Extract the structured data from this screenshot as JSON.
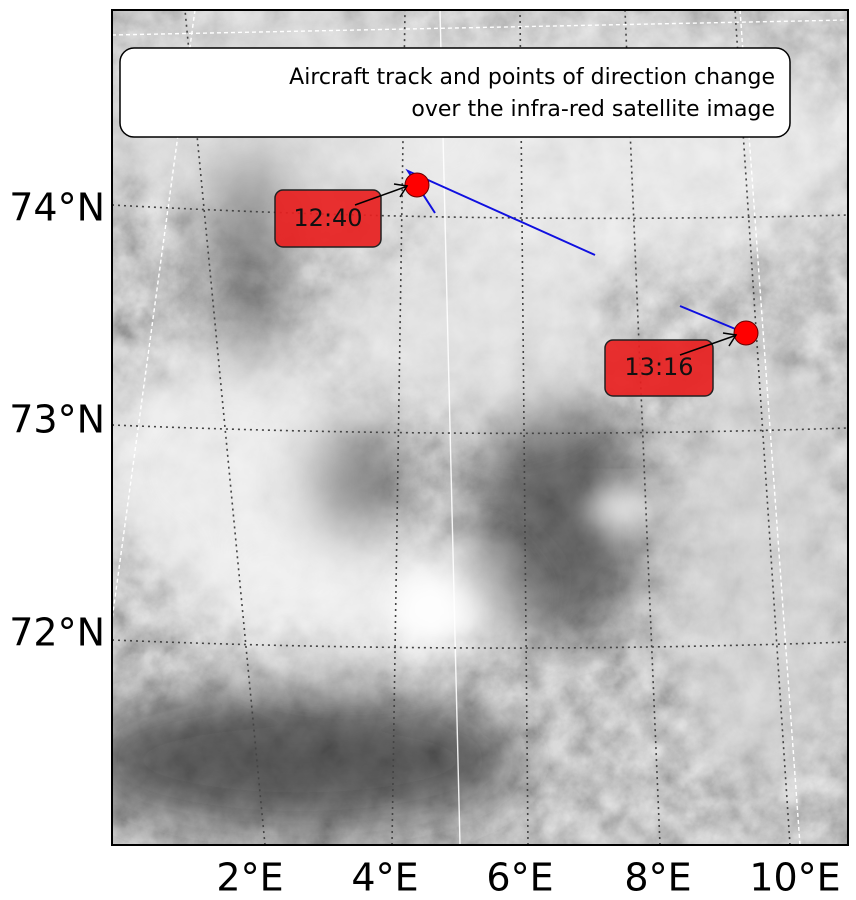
{
  "map": {
    "title_lines": [
      "Aircraft track and points of direction change",
      "over the infra-red satellite image"
    ],
    "lat_labels": [
      "74°N",
      "73°N",
      "72°N"
    ],
    "lon_labels": [
      "2°E",
      "4°E",
      "6°E",
      "8°E",
      "10°E"
    ],
    "annotations": [
      {
        "label": "12:40"
      },
      {
        "label": "13:16"
      }
    ]
  }
}
